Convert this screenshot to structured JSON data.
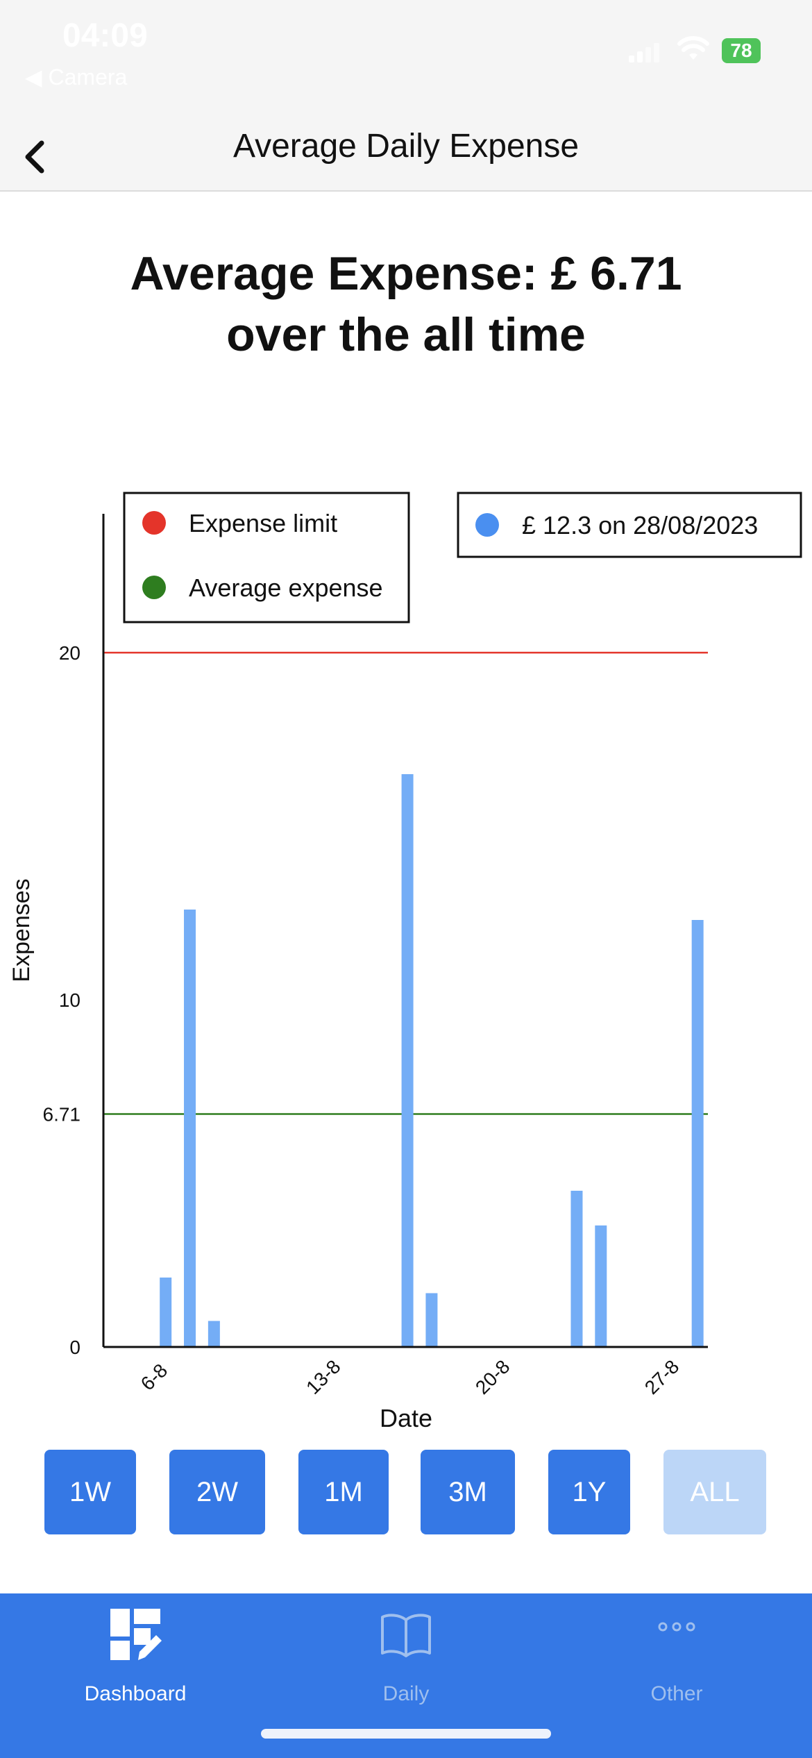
{
  "status": {
    "time": "04:09",
    "back_app": "◀ Camera",
    "battery": "78"
  },
  "nav": {
    "title": "Average Daily Expense"
  },
  "summary": {
    "line1": "Average Expense: £ 6.71",
    "line2": "over the all time"
  },
  "chart_data": {
    "type": "bar",
    "xlabel": "Date",
    "ylabel": "Expenses",
    "ylim": [
      0,
      24
    ],
    "yticks": [
      {
        "value": 0,
        "label": "0"
      },
      {
        "value": 6.71,
        "label": "6.71"
      },
      {
        "value": 10,
        "label": "10"
      },
      {
        "value": 20,
        "label": "20"
      }
    ],
    "xticks": [
      {
        "day": 6,
        "label": "6-8"
      },
      {
        "day": 13,
        "label": "13-8"
      },
      {
        "day": 20,
        "label": "20-8"
      },
      {
        "day": 27,
        "label": "27-8"
      }
    ],
    "x_range": [
      4,
      29
    ],
    "bars": [
      {
        "day": 6,
        "value": 2.0
      },
      {
        "day": 7,
        "value": 12.6
      },
      {
        "day": 8,
        "value": 0.75
      },
      {
        "day": 16,
        "value": 16.5
      },
      {
        "day": 17,
        "value": 1.55
      },
      {
        "day": 23,
        "value": 4.5
      },
      {
        "day": 24,
        "value": 3.5
      },
      {
        "day": 28,
        "value": 12.3
      }
    ],
    "lines": [
      {
        "name": "Expense limit",
        "value": 20,
        "color": "#e4342a"
      },
      {
        "name": "Average expense",
        "value": 6.71,
        "color": "#2e7d1f"
      }
    ],
    "bar_color": "#74adf6",
    "legend": [
      {
        "label": "Expense limit",
        "color": "#e4342a"
      },
      {
        "label": "Average expense",
        "color": "#2e7d1f"
      }
    ],
    "selection": {
      "label": "£ 12.3 on 28/08/2023",
      "color": "#4a8ff0"
    },
    "legend_placement": "top-left",
    "grid": false
  },
  "ranges": [
    {
      "label": "1W",
      "disabled": false
    },
    {
      "label": "2W",
      "disabled": false
    },
    {
      "label": "1M",
      "disabled": false
    },
    {
      "label": "3M",
      "disabled": false
    },
    {
      "label": "1Y",
      "disabled": false
    },
    {
      "label": "ALL",
      "disabled": true
    }
  ],
  "tabs": [
    {
      "label": "Dashboard",
      "icon": "dashboard-icon",
      "active": true
    },
    {
      "label": "Daily",
      "icon": "book-icon",
      "active": false
    },
    {
      "label": "Other",
      "icon": "more-icon",
      "active": false
    }
  ]
}
